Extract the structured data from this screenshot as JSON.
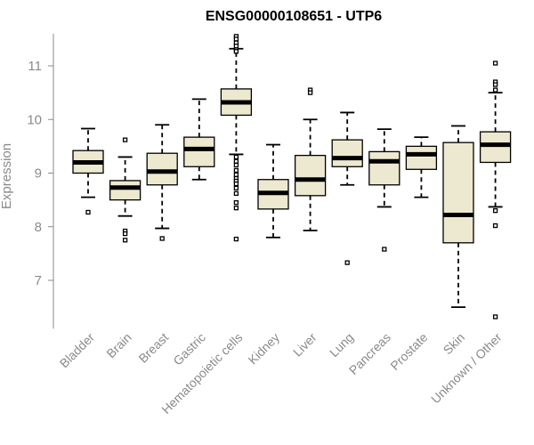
{
  "chart_data": {
    "type": "box",
    "title": "ENSG00000108651 - UTP6",
    "xlabel": "",
    "ylabel": "Expression",
    "ylim": [
      6.1,
      11.6
    ],
    "yticks": [
      7,
      8,
      9,
      10,
      11
    ],
    "categories": [
      "Bladder",
      "Brain",
      "Breast",
      "Gastric",
      "Hematopoietic cells",
      "Kidney",
      "Liver",
      "Lung",
      "Pancreas",
      "Prostate",
      "Skin",
      "Unknown / Other"
    ],
    "box_fill": "#ede8d0",
    "box_stroke": "#000000",
    "series": [
      {
        "category": "Bladder",
        "min": 8.55,
        "q1": 9.0,
        "median": 9.2,
        "q3": 9.42,
        "max": 9.83,
        "outliers": [
          8.27
        ]
      },
      {
        "category": "Brain",
        "min": 8.2,
        "q1": 8.5,
        "median": 8.73,
        "q3": 8.86,
        "max": 9.3,
        "outliers": [
          9.62,
          7.92,
          7.87,
          7.75
        ]
      },
      {
        "category": "Breast",
        "min": 7.97,
        "q1": 8.78,
        "median": 9.03,
        "q3": 9.37,
        "max": 9.9,
        "outliers": [
          7.78
        ]
      },
      {
        "category": "Gastric",
        "min": 8.88,
        "q1": 9.12,
        "median": 9.45,
        "q3": 9.67,
        "max": 10.38,
        "outliers": []
      },
      {
        "category": "Hematopoietic cells",
        "min": 9.35,
        "q1": 10.08,
        "median": 10.32,
        "q3": 10.57,
        "max": 11.32,
        "outliers": [
          11.55,
          11.5,
          11.43,
          11.37,
          11.3,
          11.27,
          9.3,
          9.22,
          9.15,
          9.05,
          8.97,
          8.9,
          8.85,
          8.8,
          8.72,
          8.62,
          8.45,
          8.35,
          7.77
        ]
      },
      {
        "category": "Kidney",
        "min": 7.8,
        "q1": 8.33,
        "median": 8.63,
        "q3": 8.88,
        "max": 9.53,
        "outliers": []
      },
      {
        "category": "Liver",
        "min": 7.93,
        "q1": 8.58,
        "median": 8.88,
        "q3": 9.33,
        "max": 10.0,
        "outliers": [
          10.55,
          10.5
        ]
      },
      {
        "category": "Lung",
        "min": 8.78,
        "q1": 9.12,
        "median": 9.28,
        "q3": 9.62,
        "max": 10.13,
        "outliers": [
          7.33
        ]
      },
      {
        "category": "Pancreas",
        "min": 8.37,
        "q1": 8.78,
        "median": 9.22,
        "q3": 9.4,
        "max": 9.82,
        "outliers": [
          7.58
        ]
      },
      {
        "category": "Prostate",
        "min": 8.55,
        "q1": 9.07,
        "median": 9.35,
        "q3": 9.5,
        "max": 9.67,
        "outliers": []
      },
      {
        "category": "Skin",
        "min": 6.5,
        "q1": 7.7,
        "median": 8.22,
        "q3": 9.57,
        "max": 9.88,
        "outliers": []
      },
      {
        "category": "Unknown / Other",
        "min": 8.37,
        "q1": 9.2,
        "median": 9.53,
        "q3": 9.77,
        "max": 10.5,
        "outliers": [
          11.05,
          10.7,
          10.65,
          10.55,
          8.3,
          8.02,
          6.32
        ]
      }
    ]
  }
}
